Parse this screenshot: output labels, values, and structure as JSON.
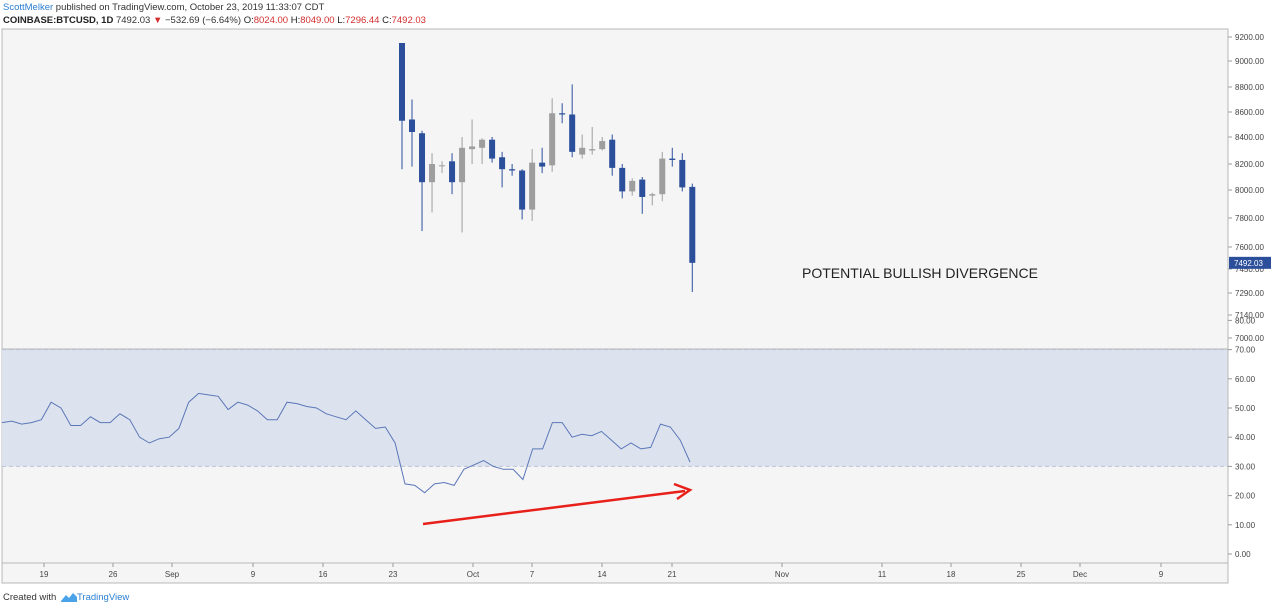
{
  "header": {
    "author": "ScottMelker",
    "published": " published on TradingView.com, October 23, 2019 11:33:07 CDT",
    "symbol": "COINBASE:BTCUSD, 1D",
    "last": "7492.03",
    "change_arrow": "▼",
    "change": "−532.69 (−6.64%)",
    "o_label": "O:",
    "o_value": "8024.00",
    "h_label": "H:",
    "h_value": "8049.00",
    "l_label": "L:",
    "l_value": "7296.44",
    "c_label": "C:",
    "c_value": "7492.03"
  },
  "annotation": {
    "text": "POTENTIAL BULLISH DIVERGENCE"
  },
  "price_axis": {
    "labels": [
      "9200.00",
      "9000.00",
      "8800.00",
      "8600.00",
      "8400.00",
      "8200.00",
      "8000.00",
      "7800.00",
      "7600.00",
      "7450.00",
      "7290.00",
      "7140.00",
      "7000.00"
    ],
    "last_price_tag": "7492.03"
  },
  "rsi_axis": {
    "labels": [
      "80.00",
      "70.00",
      "60.00",
      "50.00",
      "40.00",
      "30.00",
      "20.00",
      "10.00",
      "0.00"
    ]
  },
  "time_axis": {
    "labels": [
      "19",
      "26",
      "Sep",
      "9",
      "16",
      "23",
      "Oct",
      "7",
      "14",
      "21",
      "Nov",
      "11",
      "18",
      "25",
      "Dec",
      "9"
    ]
  },
  "footer": {
    "created": "Created with",
    "brand": "TradingView"
  },
  "colors": {
    "bear_candle": "#2c4f9c",
    "bull_candle": "#9e9e9e",
    "rsi_line": "#5b77b8",
    "rsi_band": "#dde3ee",
    "arrow": "#e8201a",
    "last_tag": "#2c4f9c"
  },
  "chart_data": [
    {
      "type": "candlestick",
      "title": "COINBASE:BTCUSD, 1D",
      "ylim": [
        6950,
        9250
      ],
      "candles": [
        {
          "o": 9250,
          "h": 9250,
          "l": 8160,
          "c": 8530
        },
        {
          "o": 8540,
          "h": 8700,
          "l": 8180,
          "c": 8440
        },
        {
          "o": 8430,
          "h": 8450,
          "l": 7710,
          "c": 8060
        },
        {
          "o": 8060,
          "h": 8280,
          "l": 7840,
          "c": 8200
        },
        {
          "o": 8190,
          "h": 8220,
          "l": 8130,
          "c": 8190
        },
        {
          "o": 8220,
          "h": 8280,
          "l": 7970,
          "c": 8060
        },
        {
          "o": 8060,
          "h": 8400,
          "l": 7700,
          "c": 8320
        },
        {
          "o": 8310,
          "h": 8540,
          "l": 8200,
          "c": 8330
        },
        {
          "o": 8320,
          "h": 8390,
          "l": 8200,
          "c": 8380
        },
        {
          "o": 8380,
          "h": 8400,
          "l": 8210,
          "c": 8240
        },
        {
          "o": 8250,
          "h": 8290,
          "l": 8020,
          "c": 8160
        },
        {
          "o": 8160,
          "h": 8200,
          "l": 8110,
          "c": 8150
        },
        {
          "o": 8150,
          "h": 8160,
          "l": 7790,
          "c": 7860
        },
        {
          "o": 7860,
          "h": 8310,
          "l": 7780,
          "c": 8210
        },
        {
          "o": 8210,
          "h": 8320,
          "l": 8130,
          "c": 8180
        },
        {
          "o": 8190,
          "h": 8710,
          "l": 8140,
          "c": 8590
        },
        {
          "o": 8590,
          "h": 8670,
          "l": 8510,
          "c": 8580
        },
        {
          "o": 8580,
          "h": 8820,
          "l": 8250,
          "c": 8290
        },
        {
          "o": 8270,
          "h": 8420,
          "l": 8240,
          "c": 8320
        },
        {
          "o": 8300,
          "h": 8480,
          "l": 8270,
          "c": 8310
        },
        {
          "o": 8310,
          "h": 8400,
          "l": 8300,
          "c": 8370
        },
        {
          "o": 8380,
          "h": 8420,
          "l": 8110,
          "c": 8170
        },
        {
          "o": 8170,
          "h": 8200,
          "l": 7940,
          "c": 7990
        },
        {
          "o": 7990,
          "h": 8090,
          "l": 7960,
          "c": 8070
        },
        {
          "o": 8080,
          "h": 8100,
          "l": 7830,
          "c": 7950
        },
        {
          "o": 7960,
          "h": 7980,
          "l": 7890,
          "c": 7970
        },
        {
          "o": 7970,
          "h": 8290,
          "l": 7920,
          "c": 8240
        },
        {
          "o": 8240,
          "h": 8320,
          "l": 8180,
          "c": 8230
        },
        {
          "o": 8230,
          "h": 8280,
          "l": 7990,
          "c": 8020
        },
        {
          "o": 8024,
          "h": 8049,
          "l": 7296.44,
          "c": 7492.03
        }
      ]
    },
    {
      "type": "line",
      "title": "",
      "ylim": [
        -5,
        87
      ],
      "bands": [
        30,
        70
      ],
      "values": [
        45,
        45.5,
        44.5,
        45,
        46,
        52,
        50,
        44,
        44,
        47,
        45,
        45,
        48,
        46,
        40,
        38,
        39.5,
        40,
        43,
        52,
        55,
        54.5,
        54,
        49.5,
        52,
        51,
        49,
        46,
        46,
        52,
        51.5,
        50.5,
        50,
        48,
        47,
        46,
        49,
        46,
        43,
        43.5,
        38,
        24,
        23.5,
        21,
        24,
        24.5,
        23.5,
        29,
        30.5,
        32,
        30,
        29,
        29,
        25.5,
        36,
        36,
        45,
        45,
        40,
        41,
        40.5,
        42,
        39,
        36,
        38,
        36,
        36.5,
        44.5,
        43.5,
        39,
        31.5
      ]
    }
  ]
}
